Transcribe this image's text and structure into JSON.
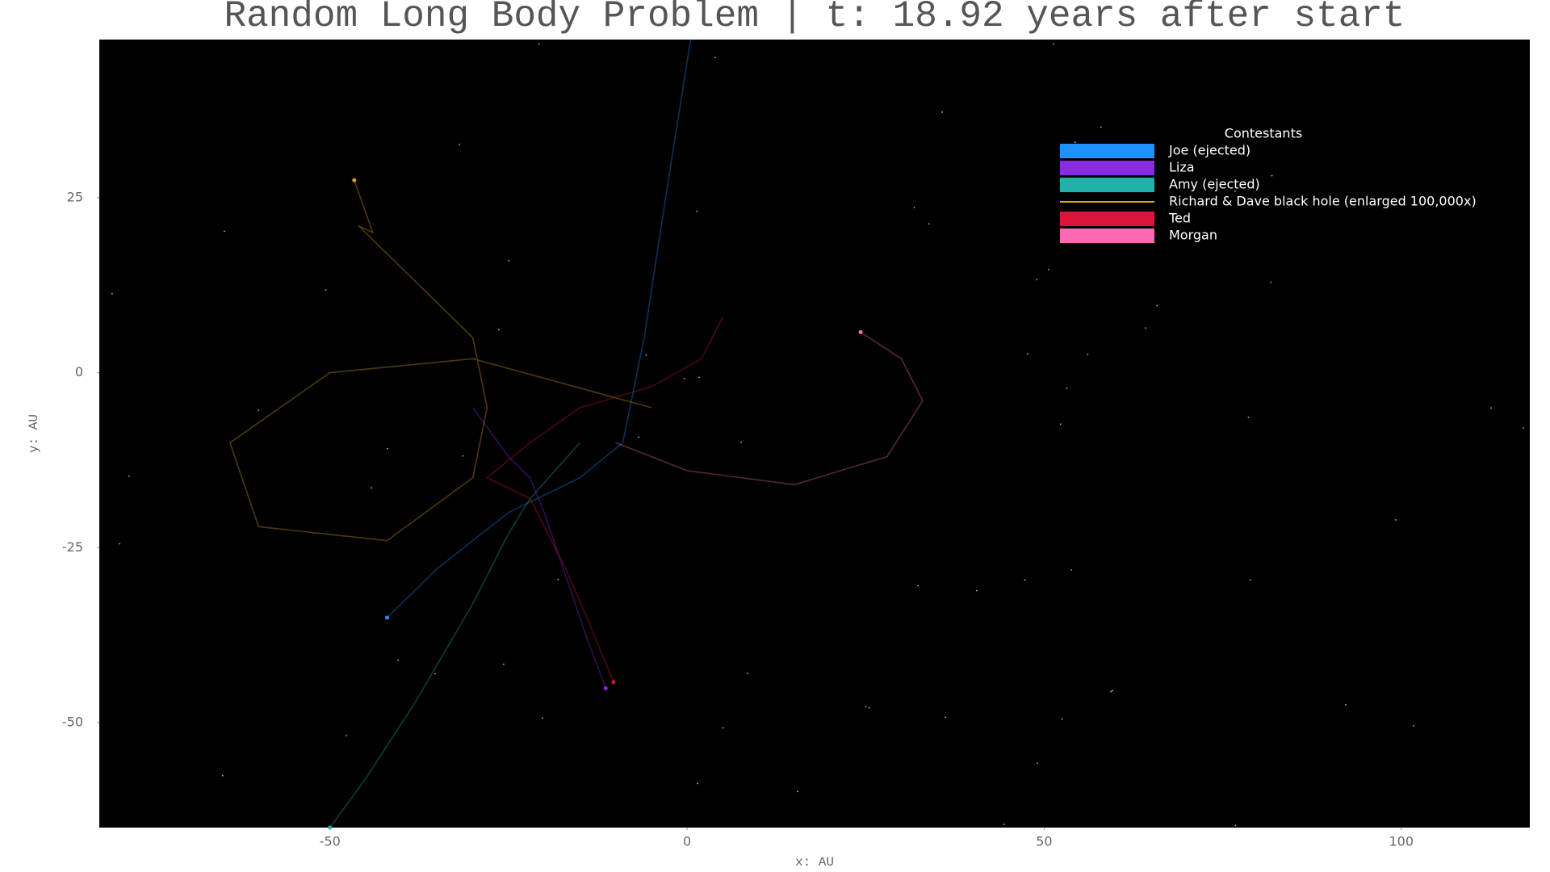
{
  "chart_data": {
    "type": "line",
    "title": "Random Long Body Problem  |  t: 18.92 years after start",
    "x_label": "x: AU",
    "y_label": "y: AU",
    "xlim": [
      -82.3,
      118
    ],
    "ylim": [
      -65,
      47.6
    ],
    "xticks": [
      -50,
      0,
      50,
      100
    ],
    "yticks": [
      -50,
      -25,
      0,
      25
    ],
    "grid": false,
    "legend_title": "Contestants",
    "legend": "upper right",
    "series": [
      {
        "name": "Joe (ejected)",
        "color": "#1e90ff",
        "x": [
          0.5,
          -3,
          -6,
          -9,
          -15,
          -25,
          -35,
          -42
        ],
        "y": [
          47.6,
          25,
          5,
          -10,
          -15,
          -20,
          -28,
          -35
        ]
      },
      {
        "name": "Liza",
        "color": "#8a2be2",
        "x": [
          -30,
          -25,
          -22,
          -20,
          -18,
          -16,
          -14,
          -12.5,
          -11.4
        ],
        "y": [
          -5,
          -12,
          -15,
          -20,
          -26,
          -32,
          -38,
          -42,
          -45.1
        ]
      },
      {
        "name": "Amy (ejected)",
        "color": "#20b2aa",
        "x": [
          -15,
          -22,
          -25,
          -30,
          -38,
          -45,
          -50
        ],
        "y": [
          -10,
          -18,
          -23,
          -33,
          -47,
          -58,
          -65
        ]
      },
      {
        "name": "Richard & Dave black hole (enlarged 100,000x)",
        "color": "#daa520",
        "legend_marker": "line",
        "x": [
          -5,
          -30,
          -50,
          -64,
          -60,
          -42,
          -30,
          -28,
          -30,
          -40,
          -46,
          -44,
          -46.6
        ],
        "y": [
          -5,
          2,
          0,
          -10,
          -22,
          -24,
          -15,
          -5,
          5,
          15,
          21,
          20,
          27.5
        ]
      },
      {
        "name": "Ted",
        "color": "#dc143c",
        "x": [
          5,
          2,
          -5,
          -15,
          -22,
          -28,
          -22,
          -20,
          -17,
          -14,
          -12,
          -10.3
        ],
        "y": [
          8,
          2,
          -2,
          -5,
          -10,
          -15,
          -18,
          -22,
          -28,
          -35,
          -40,
          -44.2
        ]
      },
      {
        "name": "Morgan",
        "color": "#ff69b4",
        "x": [
          -10,
          0,
          15,
          28,
          33,
          30,
          24.3
        ],
        "y": [
          -10,
          -14,
          -16,
          -12,
          -4,
          2,
          5.8
        ]
      }
    ]
  }
}
